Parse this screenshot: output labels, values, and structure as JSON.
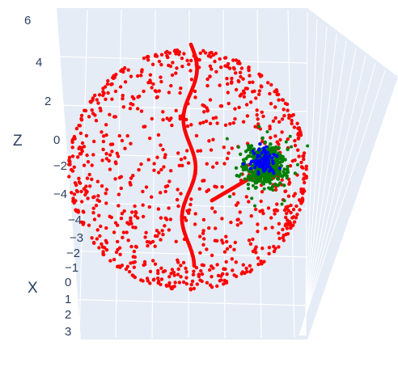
{
  "chart_data": {
    "type": "scatter",
    "dimensions": 3,
    "title": "",
    "axes": {
      "z": {
        "title": "Z",
        "tick_labels": [
          "6",
          "4",
          "2",
          "0",
          "−2",
          "−4"
        ]
      },
      "x": {
        "title": "X",
        "tick_labels": [
          "−4",
          "−3",
          "−2",
          "−1",
          "0",
          "1",
          "2",
          "3"
        ]
      }
    },
    "grid": true,
    "legend": "none",
    "series": [
      {
        "color": "#ff0000",
        "description_of_shape": "points uniformly scattered on a sphere surface",
        "approx_points": 1000,
        "extra_features": [
          "dense vertical curve through sphere center",
          "straight segment from center toward cluster"
        ]
      },
      {
        "color": "#008000",
        "description_of_shape": "dense cluster with spread points near sphere right side"
      },
      {
        "color": "#0000ff",
        "description_of_shape": "small dense cluster inside green cluster"
      }
    ],
    "colors": {
      "red": "#ff0000",
      "green": "#008000",
      "blue": "#0000ff",
      "background_pane": "#e5ecf6",
      "grid": "#ffffff"
    }
  }
}
